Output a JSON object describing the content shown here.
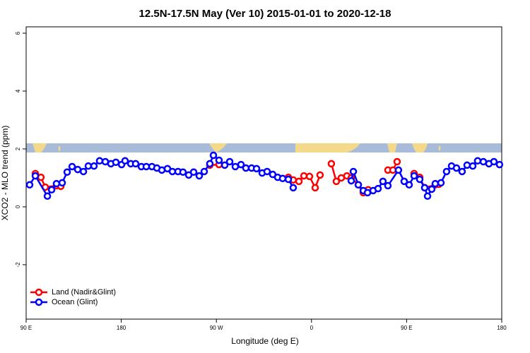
{
  "chart_data": {
    "type": "line",
    "title": "12.5N-17.5N May (Ver 10)   2015-01-01 to 2020-12-18",
    "x_label": "Longitude (deg E)",
    "y_label": "XCO2 - MLO trend (ppm)",
    "xlim": [
      90,
      540
    ],
    "ylim": [
      -3.88,
      6.22
    ],
    "xticks": [
      {
        "value": 90,
        "label": "90 E"
      },
      180,
      {
        "value": 270,
        "label": "90 W"
      },
      {
        "value": 360,
        "label": "0"
      },
      {
        "value": 450,
        "label": "90 E"
      },
      {
        "value": 540,
        "label": "180"
      }
    ],
    "yticks": [
      -2,
      0,
      2,
      4,
      6
    ],
    "legend": "bottom-left",
    "series": [
      {
        "name": "Land (Nadir&Glint)",
        "color": "#ff0000",
        "x": [
          98.7,
          104.0,
          108.1,
          118.7,
          122.8,
          null,
          263.8,
          272.5,
          null,
          338.1,
          342.7,
          348.1,
          352.8,
          358.1,
          363.5,
          368.1,
          null,
          378.8,
          383.5,
          388.2,
          393.5,
          397.6,
          404.3,
          409.0,
          413.6,
          null,
          432.3,
          437.0,
          441.0,
          null,
          457.1,
          462.4,
          467.1,
          477.1,
          480.5
        ],
        "values": [
          1.15,
          1.02,
          0.68,
          0.73,
          0.71,
          null,
          1.44,
          1.46,
          null,
          1.02,
          0.93,
          0.88,
          1.07,
          1.05,
          0.66,
          1.1,
          null,
          1.49,
          0.88,
          1.0,
          1.07,
          1.0,
          0.76,
          0.49,
          0.59,
          null,
          1.27,
          1.27,
          1.56,
          null,
          1.15,
          1.02,
          0.66,
          0.76,
          0.78
        ]
      },
      {
        "name": "Ocean (Glint)",
        "color": "#0000ff",
        "x": [
          93.3,
          98.7,
          110.1,
          114.1,
          118.7,
          124.1,
          128.8,
          133.5,
          138.8,
          144.2,
          148.8,
          154.2,
          159.5,
          164.9,
          170.2,
          174.9,
          180.3,
          183.6,
          189.0,
          193.6,
          199.0,
          203.7,
          209.0,
          213.7,
          218.4,
          223.7,
          228.4,
          233.7,
          238.4,
          243.8,
          248.5,
          253.8,
          258.5,
          263.8,
          267.2,
          272.5,
          277.9,
          282.6,
          287.9,
          293.3,
          297.9,
          303.3,
          308.0,
          313.3,
          318.0,
          323.3,
          328.0,
          332.7,
          338.1,
          342.7,
          null,
          397.6,
          399.6,
          404.3,
          409.0,
          413.0,
          418.3,
          423.0,
          427.6,
          432.3,
          442.3,
          447.7,
          452.4,
          457.1,
          462.4,
          467.1,
          469.8,
          473.8,
          477.1,
          482.5,
          487.8,
          492.5,
          497.2,
          502.5,
          507.2,
          512.6,
          517.2,
          522.6,
          527.9,
          532.6,
          537.9
        ],
        "values": [
          0.76,
          1.07,
          0.37,
          0.59,
          0.8,
          0.83,
          1.2,
          1.39,
          1.29,
          1.22,
          1.41,
          1.41,
          1.59,
          1.56,
          1.49,
          1.54,
          1.46,
          1.59,
          1.49,
          1.49,
          1.39,
          1.39,
          1.39,
          1.34,
          1.27,
          1.32,
          1.22,
          1.22,
          1.2,
          1.1,
          1.2,
          1.07,
          1.22,
          1.49,
          1.78,
          1.61,
          1.44,
          1.56,
          1.39,
          1.46,
          1.34,
          1.34,
          1.32,
          1.17,
          1.22,
          1.12,
          1.02,
          0.98,
          0.95,
          0.66,
          null,
          0.9,
          1.22,
          0.76,
          0.56,
          0.49,
          0.56,
          0.63,
          0.88,
          0.73,
          1.27,
          0.88,
          0.76,
          1.07,
          0.95,
          0.66,
          0.37,
          0.61,
          0.8,
          0.83,
          1.22,
          1.41,
          1.34,
          1.22,
          1.44,
          1.41,
          1.59,
          1.56,
          1.49,
          1.56,
          1.46
        ]
      }
    ]
  }
}
